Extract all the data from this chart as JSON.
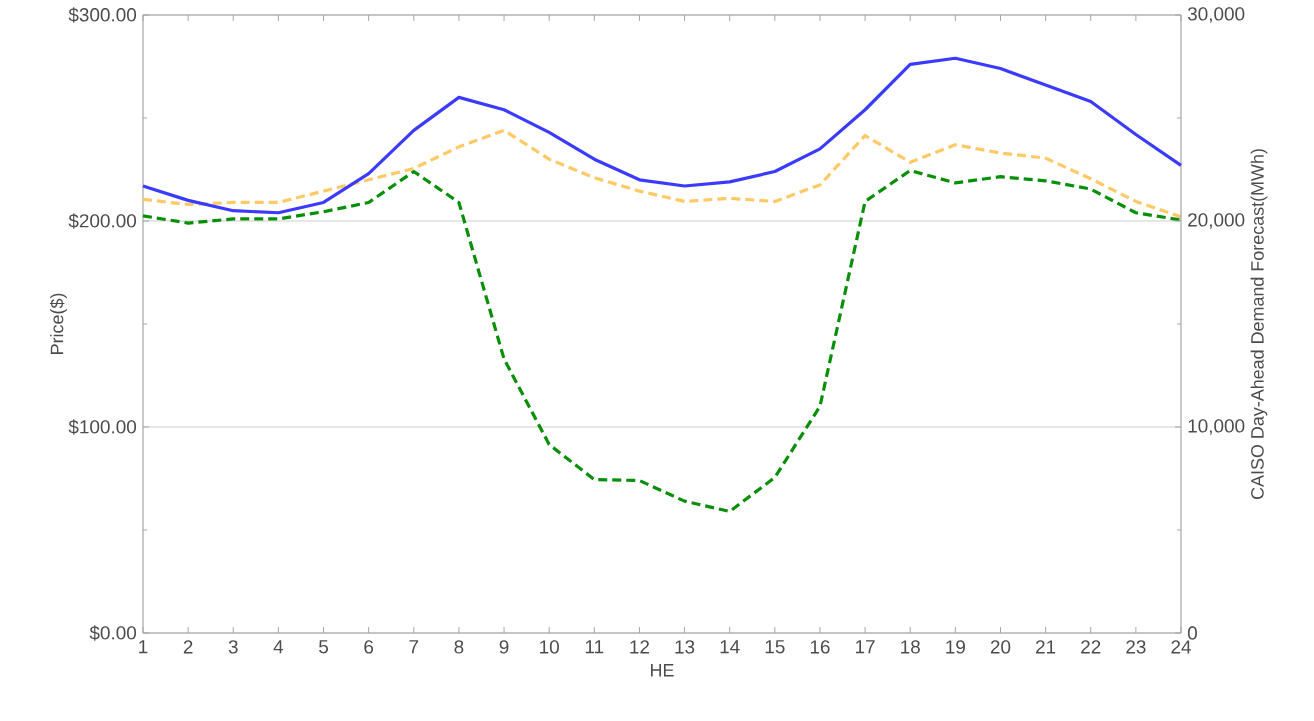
{
  "chart_data": {
    "type": "line",
    "xlabel": "HE",
    "ylabel": "Price($)",
    "y2label": "CAISO Day-Ahead Demand Forecast(MWh)",
    "categories": [
      "1",
      "2",
      "3",
      "4",
      "5",
      "6",
      "7",
      "8",
      "9",
      "10",
      "11",
      "12",
      "13",
      "14",
      "15",
      "16",
      "17",
      "18",
      "19",
      "20",
      "21",
      "22",
      "23",
      "24"
    ],
    "series": [
      {
        "color": "#3b3bff",
        "line_style": "solid",
        "axis": "y2",
        "values": [
          21700,
          21000,
          20500,
          20400,
          20900,
          22300,
          24400,
          26000,
          25400,
          24300,
          23000,
          22000,
          21700,
          21900,
          22400,
          23500,
          25400,
          27600,
          27900,
          27400,
          26600,
          25800,
          24200,
          22700
        ]
      },
      {
        "color": "#ffc966",
        "line_style": "dashed",
        "values": [
          210.5,
          208,
          209,
          209,
          214.5,
          220,
          225.5,
          236,
          244,
          230,
          221,
          214.5,
          209.5,
          211,
          209.5,
          217.5,
          241.5,
          228.5,
          237,
          233,
          230.5,
          220.5,
          209.5,
          202
        ]
      },
      {
        "color": "#078f07",
        "line_style": "dashed",
        "values": [
          202.5,
          199,
          201,
          201,
          204.5,
          209,
          224,
          209,
          133,
          91.5,
          74.5,
          74,
          64,
          59,
          75.5,
          110,
          209.5,
          224.5,
          218.5,
          221.5,
          219.5,
          215.5,
          204,
          200.5
        ]
      }
    ],
    "ylim": [
      0,
      300
    ],
    "yticks": [
      {
        "value": 0,
        "label": "$0.00"
      },
      {
        "value": 50,
        "label": null
      },
      {
        "value": 100,
        "label": "$100.00"
      },
      {
        "value": 150,
        "label": null
      },
      {
        "value": 200,
        "label": "$200.00"
      },
      {
        "value": 250,
        "label": null
      },
      {
        "value": 300,
        "label": "$300.00"
      }
    ],
    "y2lim": [
      0,
      30000
    ],
    "y2ticks": [
      0,
      {
        "value": 5000,
        "label": null
      },
      {
        "value": 10000,
        "label": "10,000"
      },
      {
        "value": 15000,
        "label": null
      },
      {
        "value": 20000,
        "label": "20,000"
      },
      {
        "value": 25000,
        "label": null
      },
      {
        "value": 30000,
        "label": "30,000"
      }
    ],
    "grid": "y"
  }
}
